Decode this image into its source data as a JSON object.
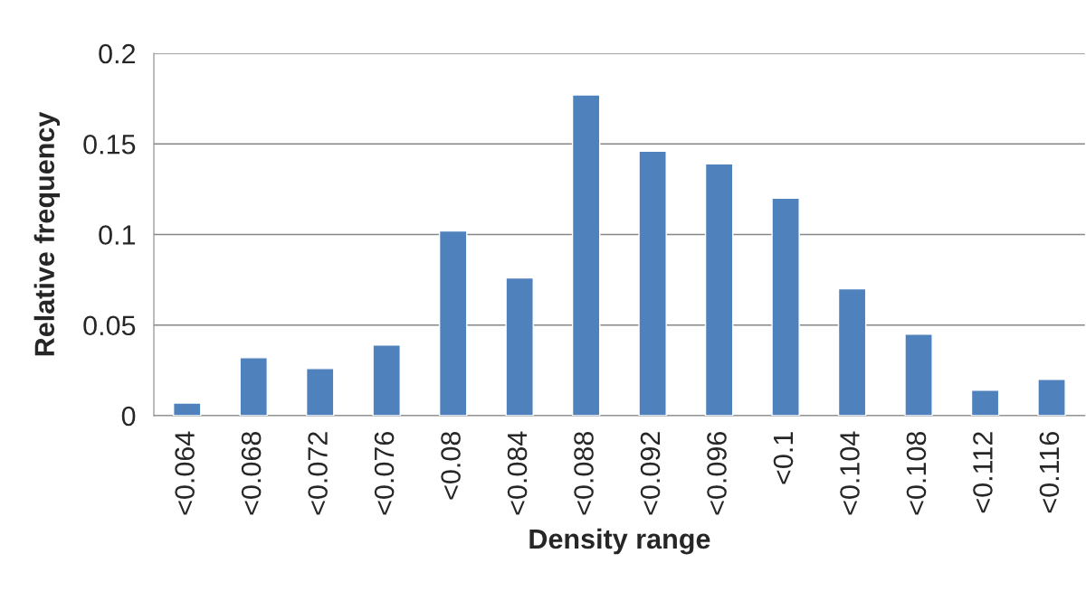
{
  "chart_data": {
    "type": "bar",
    "xlabel": "Density range",
    "ylabel": "Relative frequency",
    "categories": [
      "<0.064",
      "<0.068",
      "<0.072",
      "<0.076",
      "<0.08",
      "<0.084",
      "<0.088",
      "<0.092",
      "<0.096",
      "<0.1",
      "<0.104",
      "<0.108",
      "<0.112",
      "<0.116"
    ],
    "values": [
      0.007,
      0.032,
      0.026,
      0.039,
      0.102,
      0.076,
      0.177,
      0.146,
      0.139,
      0.12,
      0.07,
      0.045,
      0.014,
      0.02
    ],
    "color": "#4f81bd",
    "ylim": [
      0,
      0.2
    ],
    "yticks": [
      0,
      0.05,
      0.1,
      0.15,
      0.2
    ],
    "grid": "y",
    "legend": false
  }
}
